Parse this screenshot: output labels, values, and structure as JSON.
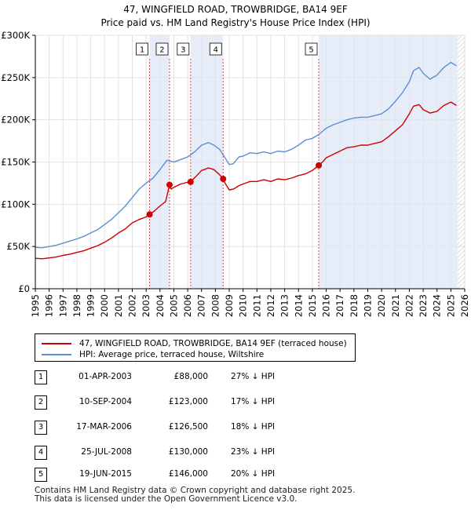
{
  "title_line1": "47, WINGFIELD ROAD, TROWBRIDGE, BA14 9EF",
  "title_line2": "Price paid vs. HM Land Registry's House Price Index (HPI)",
  "legend": {
    "property_label": "47, WINGFIELD ROAD, TROWBRIDGE, BA14 9EF (terraced house)",
    "hpi_label": "HPI: Average price, terraced house, Wiltshire"
  },
  "colors": {
    "property": "#cc0000",
    "hpi": "#5b8fd0",
    "shade": "#dde6f5",
    "hatch": "#bbbbbb",
    "grid": "#e2e2e2"
  },
  "sales": [
    {
      "num": "1",
      "date": "01-APR-2003",
      "price": "£88,000",
      "hpi": "27% ↓ HPI"
    },
    {
      "num": "2",
      "date": "10-SEP-2004",
      "price": "£123,000",
      "hpi": "17% ↓ HPI"
    },
    {
      "num": "3",
      "date": "17-MAR-2006",
      "price": "£126,500",
      "hpi": "18% ↓ HPI"
    },
    {
      "num": "4",
      "date": "25-JUL-2008",
      "price": "£130,000",
      "hpi": "23% ↓ HPI"
    },
    {
      "num": "5",
      "date": "19-JUN-2015",
      "price": "£146,000",
      "hpi": "20% ↓ HPI"
    }
  ],
  "footer_line1": "Contains HM Land Registry data © Crown copyright and database right 2025.",
  "footer_line2": "This data is licensed under the Open Government Licence v3.0.",
  "chart_data": {
    "type": "line",
    "xlim": [
      1995,
      2026
    ],
    "ylim": [
      0,
      300000
    ],
    "x_ticks": [
      1995,
      1996,
      1997,
      1998,
      1999,
      2000,
      2001,
      2002,
      2003,
      2004,
      2005,
      2006,
      2007,
      2008,
      2009,
      2010,
      2011,
      2012,
      2013,
      2014,
      2015,
      2016,
      2017,
      2018,
      2019,
      2020,
      2021,
      2022,
      2023,
      2024,
      2025,
      2026
    ],
    "x_tick_labels": [
      "1995",
      "1996",
      "1997",
      "1998",
      "1999",
      "2000",
      "2001",
      "2002",
      "2003",
      "2004",
      "2005",
      "2006",
      "2007",
      "2008",
      "2009",
      "2010",
      "2011",
      "2012",
      "2013",
      "2014",
      "2015",
      "2016",
      "2017",
      "2018",
      "2019",
      "2020",
      "2021",
      "2022",
      "2023",
      "2024",
      "2025",
      "2026"
    ],
    "y_ticks": [
      0,
      50000,
      100000,
      150000,
      200000,
      250000,
      300000
    ],
    "y_tick_labels": [
      "£0",
      "£50K",
      "£100K",
      "£150K",
      "£200K",
      "£250K",
      "£300K"
    ],
    "sale_markers": [
      {
        "label": "1",
        "x": 2003.25,
        "y": 88000
      },
      {
        "label": "2",
        "x": 2004.69,
        "y": 123000
      },
      {
        "label": "3",
        "x": 2006.21,
        "y": 126500
      },
      {
        "label": "4",
        "x": 2008.56,
        "y": 130000
      },
      {
        "label": "5",
        "x": 2015.46,
        "y": 146000
      }
    ],
    "shaded_ranges": [
      [
        2003.25,
        2004.69
      ],
      [
        2006.21,
        2008.56
      ],
      [
        2015.46,
        2025.5
      ]
    ],
    "hatch_range": [
      2025.5,
      2026
    ],
    "series": [
      {
        "name": "HPI: Average price, terraced house, Wiltshire",
        "x": [
          1995.0,
          1995.5,
          1996.0,
          1996.5,
          1997.0,
          1997.5,
          1998.0,
          1998.5,
          1999.0,
          1999.5,
          2000.0,
          2000.5,
          2001.0,
          2001.5,
          2002.0,
          2002.5,
          2003.0,
          2003.5,
          2004.0,
          2004.5,
          2005.0,
          2005.5,
          2006.0,
          2006.5,
          2007.0,
          2007.5,
          2007.9,
          2008.3,
          2008.7,
          2009.0,
          2009.3,
          2009.7,
          2010.0,
          2010.5,
          2011.0,
          2011.5,
          2012.0,
          2012.5,
          2013.0,
          2013.5,
          2014.0,
          2014.5,
          2015.0,
          2015.5,
          2016.0,
          2016.5,
          2017.0,
          2017.5,
          2018.0,
          2018.5,
          2019.0,
          2019.5,
          2020.0,
          2020.5,
          2021.0,
          2021.5,
          2022.0,
          2022.3,
          2022.7,
          2023.0,
          2023.5,
          2024.0,
          2024.5,
          2025.0,
          2025.4
        ],
        "y": [
          49000,
          48500,
          50000,
          51500,
          54000,
          56500,
          59000,
          62000,
          66000,
          70000,
          76000,
          82000,
          90000,
          98000,
          108000,
          118000,
          125000,
          131000,
          141000,
          152000,
          150000,
          153000,
          156000,
          162000,
          170000,
          173000,
          170000,
          165000,
          155000,
          147000,
          148000,
          156000,
          157000,
          161000,
          160000,
          162000,
          160000,
          163000,
          162000,
          165000,
          170000,
          176000,
          178000,
          183000,
          190000,
          194000,
          197000,
          200000,
          202000,
          203000,
          203000,
          205000,
          207000,
          213000,
          222000,
          232000,
          245000,
          258000,
          262000,
          255000,
          248000,
          253000,
          262000,
          268000,
          264000
        ]
      },
      {
        "name": "47, WINGFIELD ROAD, TROWBRIDGE, BA14 9EF (terraced house)",
        "x": [
          1995.0,
          1995.5,
          1996.0,
          1996.5,
          1997.0,
          1997.5,
          1998.0,
          1998.5,
          1999.0,
          1999.5,
          2000.0,
          2000.5,
          2001.0,
          2001.5,
          2002.0,
          2002.5,
          2003.0,
          2003.25,
          2003.6,
          2004.0,
          2004.4,
          2004.69,
          2004.8,
          2005.0,
          2005.5,
          2006.0,
          2006.21,
          2006.6,
          2007.0,
          2007.5,
          2007.9,
          2008.3,
          2008.56,
          2008.7,
          2009.0,
          2009.3,
          2009.7,
          2010.0,
          2010.5,
          2011.0,
          2011.5,
          2012.0,
          2012.5,
          2013.0,
          2013.5,
          2014.0,
          2014.5,
          2015.0,
          2015.46,
          2015.8,
          2016.0,
          2016.5,
          2017.0,
          2017.5,
          2018.0,
          2018.5,
          2019.0,
          2019.5,
          2020.0,
          2020.5,
          2021.0,
          2021.5,
          2022.0,
          2022.3,
          2022.7,
          2023.0,
          2023.5,
          2024.0,
          2024.5,
          2025.0,
          2025.4
        ],
        "y": [
          36000,
          35500,
          36500,
          37500,
          39500,
          41000,
          43000,
          45000,
          48000,
          51000,
          55000,
          60000,
          66000,
          71000,
          78000,
          82000,
          85000,
          88000,
          92000,
          98000,
          103000,
          123000,
          118000,
          120000,
          124000,
          126000,
          126500,
          133000,
          140000,
          143000,
          141000,
          135000,
          130000,
          125000,
          117000,
          118000,
          122000,
          124000,
          127000,
          127000,
          129000,
          127000,
          130000,
          129000,
          131000,
          134000,
          136000,
          140000,
          146000,
          151000,
          155000,
          159000,
          163000,
          167000,
          168000,
          170000,
          170000,
          172000,
          174000,
          180000,
          187000,
          194000,
          207000,
          216000,
          218000,
          212000,
          208000,
          210000,
          217000,
          221000,
          217000
        ]
      }
    ]
  }
}
